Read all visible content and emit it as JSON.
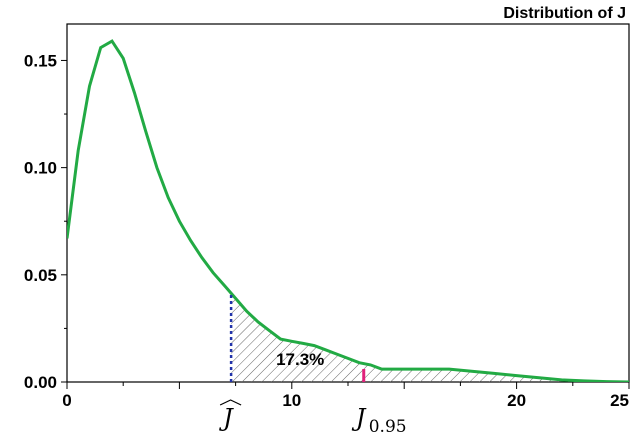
{
  "chart_data": {
    "type": "line",
    "title": "Distribution of J",
    "xlabel": "",
    "ylabel": "",
    "xlim": [
      0,
      25
    ],
    "ylim": [
      0,
      0.167
    ],
    "x_ticks": [
      0,
      10,
      20,
      25
    ],
    "x_tick_labels": [
      "0",
      "10",
      "20",
      "25"
    ],
    "y_ticks": [
      0.0,
      0.05,
      0.1,
      0.15
    ],
    "y_tick_labels": [
      "0.00",
      "0.05",
      "0.10",
      "0.15"
    ],
    "series": [
      {
        "color": "#22aa44",
        "x": [
          0,
          0.5,
          1,
          1.5,
          2,
          2.5,
          3,
          3.5,
          4,
          4.5,
          5,
          5.5,
          6,
          6.5,
          7,
          7.5,
          8,
          8.5,
          9,
          9.5,
          10,
          10.5,
          11,
          11.5,
          12,
          12.5,
          13,
          13.5,
          14,
          15,
          16,
          17,
          18,
          19,
          20,
          21,
          22,
          23,
          24,
          25
        ],
        "y": [
          0.067,
          0.108,
          0.138,
          0.156,
          0.159,
          0.151,
          0.135,
          0.117,
          0.1,
          0.086,
          0.075,
          0.066,
          0.058,
          0.051,
          0.045,
          0.039,
          0.033,
          0.028,
          0.024,
          0.02,
          0.019,
          0.018,
          0.017,
          0.015,
          0.013,
          0.011,
          0.009,
          0.008,
          0.006,
          0.006,
          0.006,
          0.006,
          0.005,
          0.004,
          0.003,
          0.002,
          0.001,
          0.0005,
          0.0002,
          0.0
        ]
      }
    ],
    "shaded_region": {
      "x_start": 7.3,
      "x_end": 25,
      "pattern": "diagonal hatch",
      "label": "17.3%",
      "label_x": 9.3,
      "label_y": 0.008
    },
    "markers": [
      {
        "x": 7.3,
        "color": "#2233aa",
        "style": "dotted",
        "label_base": "J",
        "label_sub": "",
        "label_hat": true
      },
      {
        "x": 13.2,
        "color": "#e0207a",
        "style": "solid",
        "label_base": "J",
        "label_sub": "0.95",
        "label_hat": false
      }
    ],
    "grid": false
  }
}
